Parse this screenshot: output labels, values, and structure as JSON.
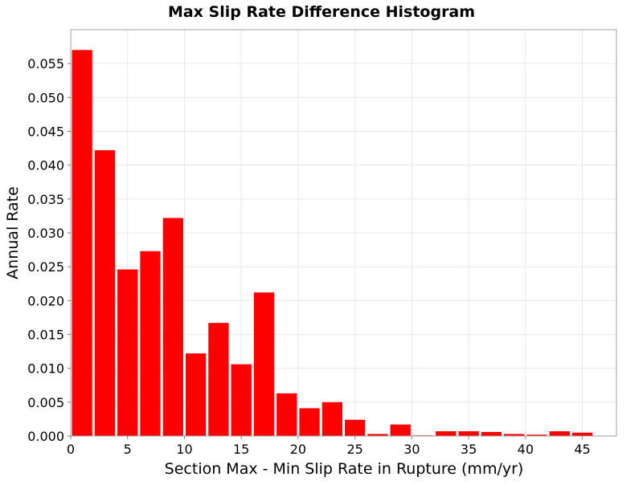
{
  "chart_data": {
    "type": "bar",
    "title": "Max Slip Rate Difference Histogram",
    "xlabel": "Section Max - Min Slip Rate in Rupture (mm/yr)",
    "ylabel": "Annual Rate",
    "xlim": [
      0,
      48
    ],
    "ylim": [
      0,
      0.06
    ],
    "x_ticks": [
      "0",
      "5",
      "10",
      "15",
      "20",
      "25",
      "30",
      "35",
      "40",
      "45"
    ],
    "y_ticks": [
      "0.000",
      "0.005",
      "0.010",
      "0.015",
      "0.020",
      "0.025",
      "0.030",
      "0.035",
      "0.040",
      "0.045",
      "0.050",
      "0.055"
    ],
    "bin_width": 2,
    "x": [
      1,
      3,
      5,
      7,
      9,
      11,
      13,
      15,
      17,
      19,
      21,
      23,
      25,
      27,
      29,
      31,
      33,
      35,
      37,
      39,
      41,
      43,
      45
    ],
    "values": [
      0.057,
      0.0422,
      0.0246,
      0.0273,
      0.0322,
      0.0122,
      0.0167,
      0.0106,
      0.0212,
      0.0063,
      0.0041,
      0.005,
      0.0024,
      0.0003,
      0.0017,
      0.0001,
      0.0007,
      0.0007,
      0.0006,
      0.0003,
      0.0002,
      0.0007,
      0.0005
    ],
    "grid": true,
    "colors": {
      "bar": "#ff0000",
      "grid": "#e8e8e8",
      "frame": "#a0a0a0",
      "background": "#ffffff"
    }
  }
}
